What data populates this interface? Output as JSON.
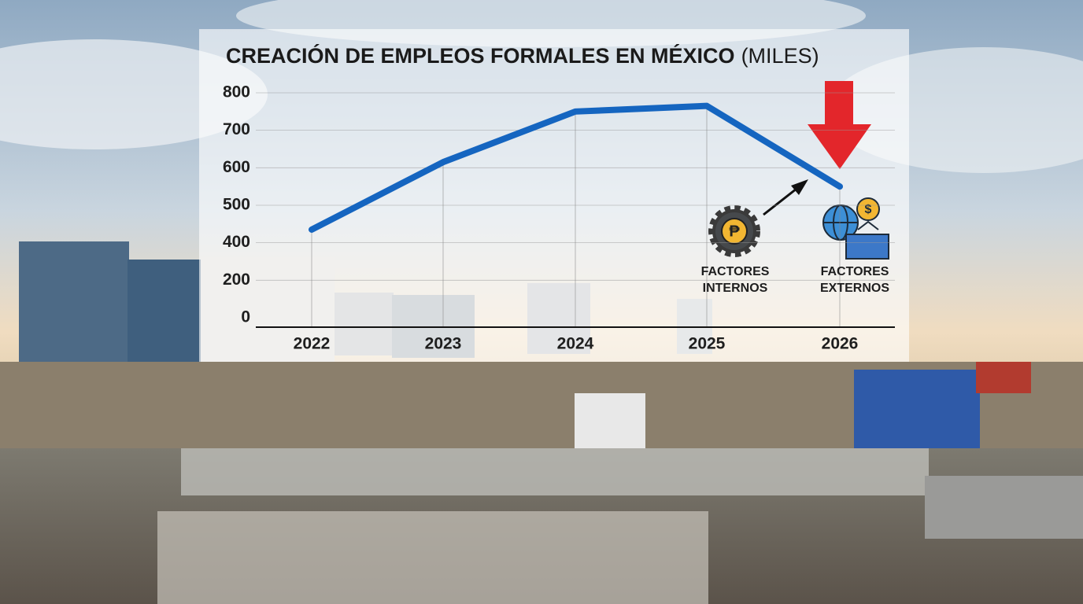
{
  "chart_data": {
    "type": "line",
    "title": "CREACIÓN DE EMPLEOS FORMALES EN MÉXICO",
    "title_unit": "(MILES)",
    "categories": [
      "2022",
      "2023",
      "2024",
      "2025",
      "2026"
    ],
    "values": [
      435,
      615,
      750,
      765,
      550
    ],
    "color": "#1565c0",
    "ylim": [
      0,
      800
    ],
    "yticks": [
      0,
      200,
      400,
      500,
      600,
      700,
      800
    ],
    "grid": true,
    "annotations": [
      [
        "FACTORES",
        "INTERNOS"
      ],
      [
        "FACTORES",
        "EXTERNOS"
      ]
    ]
  }
}
